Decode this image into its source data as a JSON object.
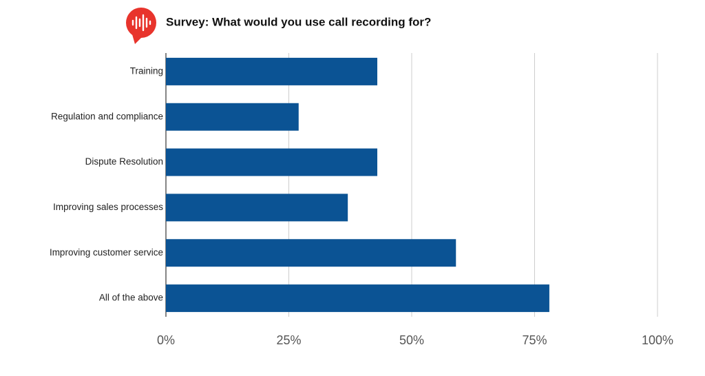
{
  "chart_data": {
    "type": "bar",
    "orientation": "horizontal",
    "title": "Survey: What would you use call recording for?",
    "categories": [
      "Training",
      "Regulation and compliance",
      "Dispute Resolution",
      "Improving sales processes",
      "Improving customer service",
      "All of the above"
    ],
    "values": [
      43,
      27,
      43,
      37,
      59,
      78
    ],
    "color": "#0b5394",
    "xlim": [
      0,
      100
    ],
    "xticks": [
      {
        "value": 0,
        "label": "0%"
      },
      {
        "value": 25,
        "label": "25%"
      },
      {
        "value": 50,
        "label": "50%"
      },
      {
        "value": 75,
        "label": "75%"
      },
      {
        "value": 100,
        "label": "100%"
      }
    ],
    "grid": true
  }
}
